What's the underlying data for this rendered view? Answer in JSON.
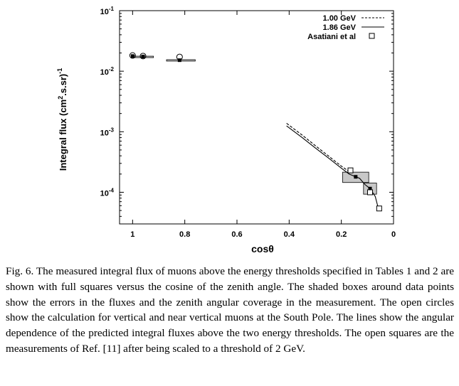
{
  "chart_data": {
    "type": "scatter",
    "title": "",
    "xlabel": "cosθ",
    "ylabel": "Integral flux (cm2.s.sr)-1",
    "ylabel_parts": {
      "prefix": "Integral flux  (cm",
      "sup1": "2",
      "middle": ".s.sr)",
      "sup2": "-1"
    },
    "xlim": [
      1.05,
      0.0
    ],
    "xscale": "linear",
    "xaxis_reversed": true,
    "ylim": [
      3e-05,
      0.1
    ],
    "yscale": "log",
    "grid": false,
    "legend_position": "top-right",
    "x_tick_labels": [
      "1",
      "0.8",
      "0.6",
      "0.4",
      "0.2",
      "0"
    ],
    "x_tick_values": [
      1,
      0.8,
      0.6,
      0.4,
      0.2,
      0
    ],
    "y_tick_values": [
      0.1,
      0.01,
      0.001,
      0.0001
    ],
    "y_tick_labels": [
      {
        "base": "10",
        "exp": "-1"
      },
      {
        "base": "10",
        "exp": "-2"
      },
      {
        "base": "10",
        "exp": "-3"
      },
      {
        "base": "10",
        "exp": "-4"
      }
    ],
    "legend": [
      {
        "label": "1.00 GeV",
        "style": "dashed-line"
      },
      {
        "label": "1.86 GeV",
        "style": "solid-line"
      },
      {
        "label": "Asatiani et al",
        "style": "open-square"
      }
    ],
    "series": [
      {
        "name": "1.00 GeV",
        "style": "dashed",
        "x": [
          0.41,
          0.35,
          0.3,
          0.25,
          0.2,
          0.17
        ],
        "y": [
          0.00138,
          0.00088,
          0.00059,
          0.0004,
          0.00027,
          0.00022
        ]
      },
      {
        "name": "1.86 GeV",
        "style": "solid",
        "x": [
          0.41,
          0.35,
          0.3,
          0.25,
          0.2,
          0.17,
          0.13,
          0.11,
          0.09,
          0.07,
          0.06
        ],
        "y": [
          0.00125,
          0.0008,
          0.00054,
          0.00037,
          0.00025,
          0.0002,
          0.00017,
          0.000135,
          0.000115,
          8.5e-05,
          5.8e-05
        ]
      },
      {
        "name": "Asatiani et al",
        "style": "open-square",
        "x": [
          0.165,
          0.09,
          0.055
        ],
        "y": [
          0.00023,
          0.0001,
          5.4e-05
        ]
      }
    ],
    "measured_points": {
      "marker": "filled-square",
      "points": [
        {
          "x": 1.0,
          "y": 0.0178,
          "xerr": [
            0.99,
            1.0
          ],
          "yerr": [
            0.0176,
            0.018
          ]
        },
        {
          "x": 0.96,
          "y": 0.0175,
          "xerr": [
            0.92,
            0.99
          ],
          "yerr": [
            0.0173,
            0.0177
          ]
        },
        {
          "x": 0.82,
          "y": 0.0152,
          "xerr": [
            0.87,
            0.76
          ],
          "yerr": [
            0.0149,
            0.0155
          ]
        },
        {
          "x": 0.145,
          "y": 0.00018,
          "xerr": [
            0.195,
            0.095
          ],
          "yerr": [
            0.000145,
            0.000215
          ]
        },
        {
          "x": 0.09,
          "y": 0.000115,
          "xerr": [
            0.115,
            0.065
          ],
          "yerr": [
            9.3e-05,
            0.000142
          ]
        }
      ]
    },
    "calculation_circles": {
      "marker": "open-circle",
      "x": [
        1.0,
        0.96,
        0.82
      ],
      "y": [
        0.0182,
        0.0178,
        0.0172
      ]
    }
  },
  "caption": {
    "text": "Fig. 6. The measured integral flux of muons above the energy thresholds specified in Tables 1 and 2 are shown with full squares versus the cosine of the zenith angle. The shaded boxes around data points show the errors in the fluxes and the zenith angular coverage in the measurement. The open circles show the calculation for vertical and near vertical muons at the South Pole. The lines show the angular dependence of the predicted integral fluxes above the two energy thresholds. The open squares are the measurements of Ref. [11] after being scaled to a threshold of 2 GeV."
  }
}
